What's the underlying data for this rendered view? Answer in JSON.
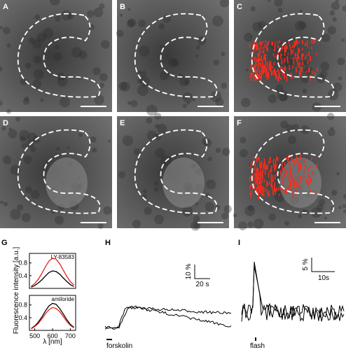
{
  "panel_labels": [
    "A",
    "B",
    "C",
    "D",
    "E",
    "F",
    "G",
    "H",
    "I"
  ],
  "chart_data": [
    {
      "type": "line",
      "annotation": "LY-83583",
      "ylabel": "Fluorescence intensity [a.u.]",
      "x": [
        480,
        500,
        520,
        540,
        560,
        580,
        600,
        620,
        640,
        660,
        680,
        700,
        720
      ],
      "series": [
        {
          "color": "#e8201a",
          "values": [
            0.07,
            0.15,
            0.29,
            0.47,
            0.68,
            0.86,
            0.95,
            0.92,
            0.78,
            0.58,
            0.38,
            0.21,
            0.11
          ]
        },
        {
          "color": "#000000",
          "values": [
            0.04,
            0.09,
            0.17,
            0.27,
            0.39,
            0.5,
            0.55,
            0.53,
            0.45,
            0.33,
            0.22,
            0.12,
            0.06
          ]
        }
      ],
      "xlim": [
        470,
        730
      ],
      "ylim": [
        0,
        1.1
      ],
      "yticks": [
        0.4,
        0.8
      ]
    },
    {
      "type": "line",
      "annotation": "amiloride",
      "xlabel": "λ [nm]",
      "x": [
        480,
        500,
        520,
        540,
        560,
        580,
        600,
        620,
        640,
        660,
        680,
        700,
        720
      ],
      "series": [
        {
          "color": "#000000",
          "values": [
            0.06,
            0.14,
            0.26,
            0.42,
            0.61,
            0.77,
            0.85,
            0.82,
            0.69,
            0.52,
            0.34,
            0.19,
            0.1
          ]
        },
        {
          "color": "#e8201a",
          "values": [
            0.05,
            0.12,
            0.22,
            0.36,
            0.52,
            0.65,
            0.72,
            0.69,
            0.59,
            0.44,
            0.28,
            0.16,
            0.08
          ]
        }
      ],
      "xlim": [
        470,
        730
      ],
      "ylim": [
        0,
        1.1
      ],
      "yticks": [
        0.4,
        0.8
      ],
      "xticks": [
        500,
        600,
        700
      ]
    }
  ],
  "panel_h": {
    "scale_y": "10 %",
    "scale_x": "20 s",
    "stimulus": "forskolin"
  },
  "panel_i": {
    "scale_y": "5 %",
    "scale_x": "10s",
    "stimulus": "flash"
  }
}
